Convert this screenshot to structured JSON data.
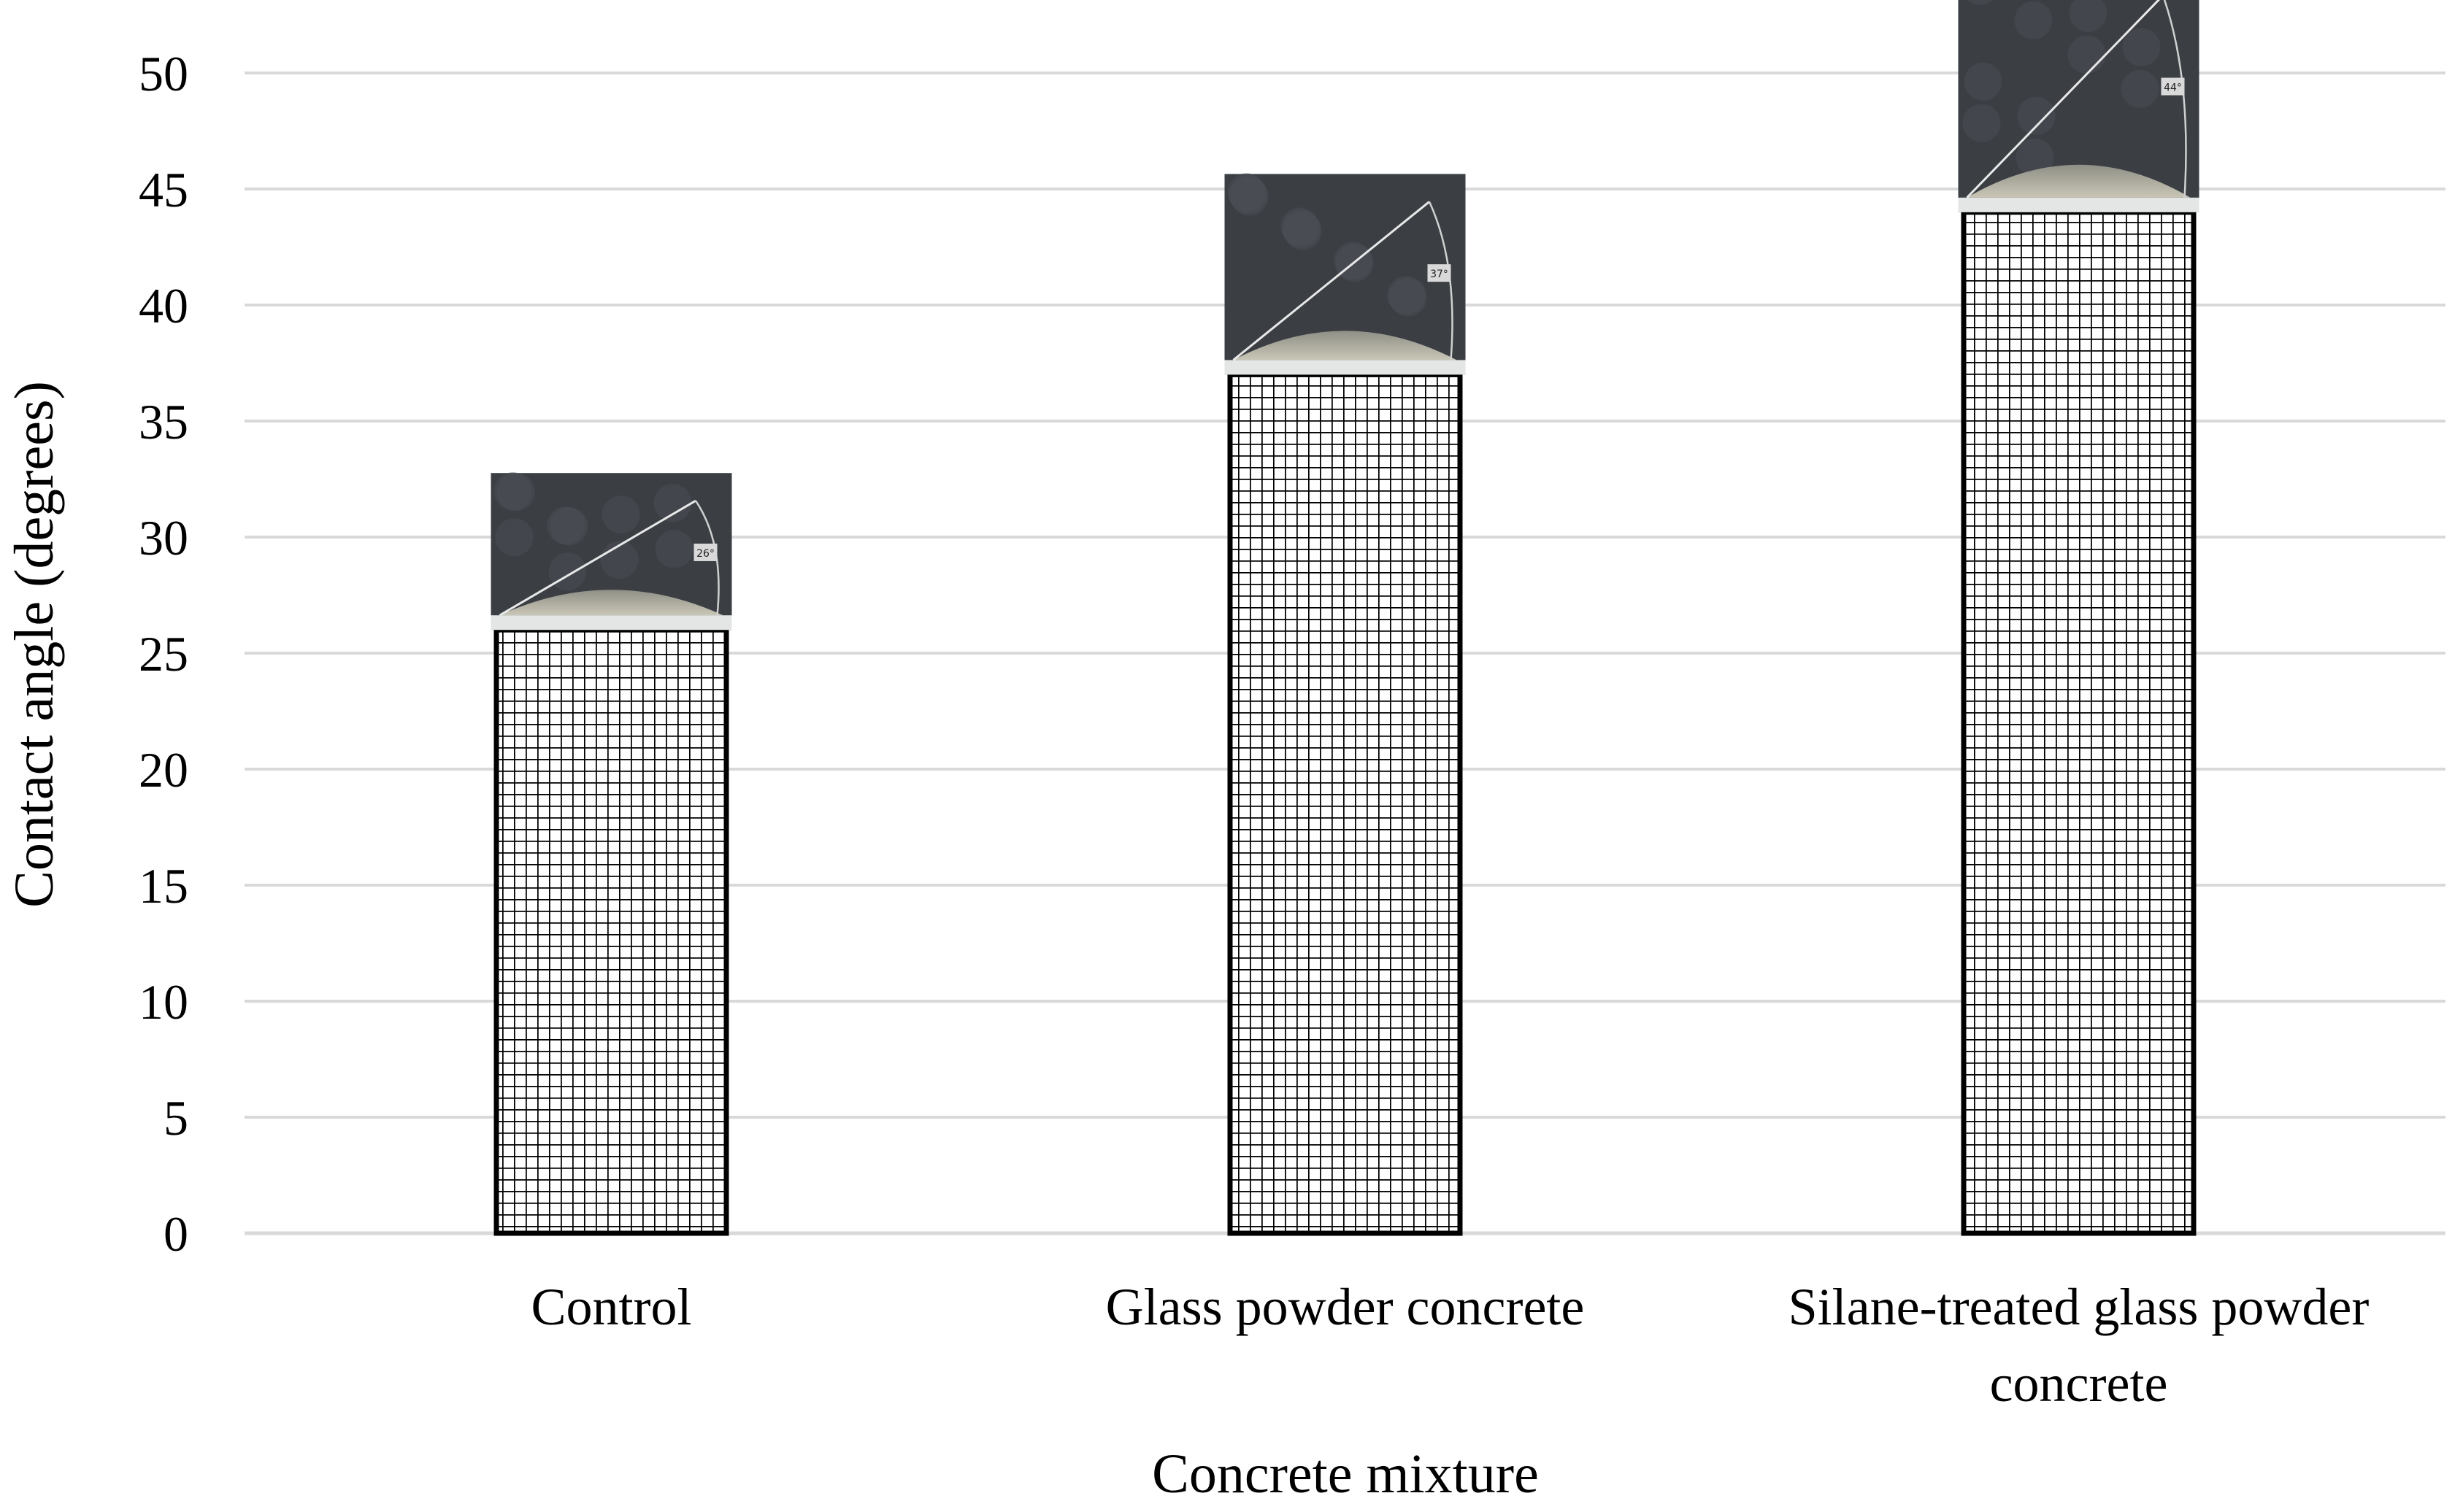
{
  "chart_data": {
    "type": "bar",
    "title": "",
    "xlabel": "Concrete mixture",
    "ylabel": "Contact angle (degrees)",
    "ylim": [
      0,
      50
    ],
    "yticks": [
      0,
      5,
      10,
      15,
      20,
      25,
      30,
      35,
      40,
      45,
      50
    ],
    "categories": [
      [
        "Control"
      ],
      [
        "Glass powder concrete"
      ],
      [
        "Silane-treated glass powder",
        "concrete"
      ]
    ],
    "values": [
      26,
      37,
      44
    ],
    "inset_photos": [
      {
        "category": "Control",
        "depicted": "water droplet contact angle measurement",
        "angle_label": "26°"
      },
      {
        "category": "Glass powder concrete",
        "depicted": "water droplet contact angle measurement",
        "angle_label": "37°"
      },
      {
        "category": "Silane-treated glass powder concrete",
        "depicted": "water droplet contact angle measurement",
        "angle_label": "44°"
      }
    ],
    "grid": true,
    "legend": "none"
  }
}
